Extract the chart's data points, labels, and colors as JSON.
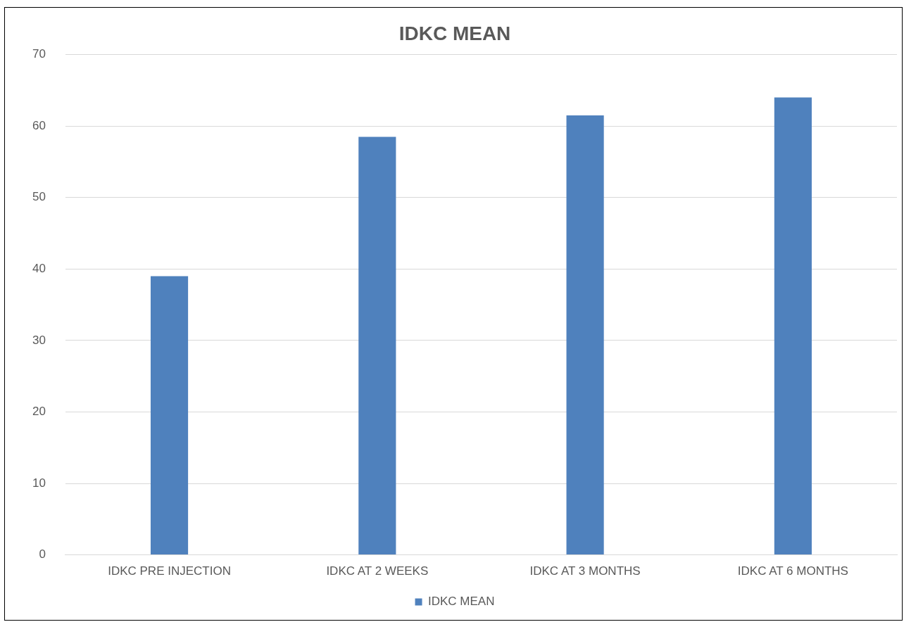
{
  "chart_data": {
    "type": "bar",
    "title": "IDKC MEAN",
    "categories": [
      "IDKC PRE INJECTION",
      "IDKC AT 2 WEEKS",
      "IDKC AT 3 MONTHS",
      "IDKC AT 6 MONTHS"
    ],
    "series": [
      {
        "name": "IDKC MEAN",
        "color": "#4f81bd",
        "values": [
          39,
          58.5,
          61.5,
          64
        ]
      }
    ],
    "ylim": [
      0,
      70
    ],
    "yticks": [
      0,
      10,
      20,
      30,
      40,
      50,
      60,
      70
    ],
    "grid": "y",
    "legend": "bottom"
  }
}
